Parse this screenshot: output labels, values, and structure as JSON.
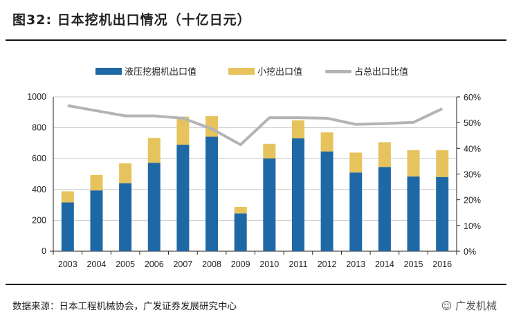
{
  "title": "图32:  日本挖机出口情况（十亿日元）",
  "source": "数据来源：日本工程机械协会，广发证券发展研究中心",
  "watermark": "广发机械",
  "chart_data": {
    "type": "bar",
    "stacked": true,
    "title": "图32:  日本挖机出口情况（十亿日元）",
    "categories": [
      "2003",
      "2004",
      "2005",
      "2006",
      "2007",
      "2008",
      "2009",
      "2010",
      "2011",
      "2012",
      "2013",
      "2014",
      "2015",
      "2016"
    ],
    "series": [
      {
        "name": "液压挖掘机出口值",
        "type": "bar",
        "axis": "left",
        "color": "#1f68a6",
        "values": [
          316,
          394,
          440,
          573,
          690,
          742,
          245,
          601,
          731,
          646,
          510,
          546,
          484,
          481
        ]
      },
      {
        "name": "小挖出口值",
        "type": "bar",
        "axis": "left",
        "color": "#e6c35c",
        "values": [
          72,
          100,
          129,
          161,
          182,
          134,
          42,
          95,
          117,
          124,
          129,
          160,
          170,
          173
        ]
      },
      {
        "name": "占总出口比值",
        "type": "line",
        "axis": "right",
        "color": "#b4b4b4",
        "values": [
          56.6,
          54.6,
          52.6,
          52.6,
          51.7,
          47.6,
          41.4,
          51.9,
          51.9,
          51.7,
          49.3,
          49.6,
          50.1,
          55.4
        ]
      }
    ],
    "y_left": {
      "range": [
        0,
        1000
      ],
      "ticks": [
        "0",
        "200",
        "400",
        "600",
        "800",
        "1000"
      ]
    },
    "y_right": {
      "range": [
        0,
        60
      ],
      "ticks": [
        "0%",
        "10%",
        "20%",
        "30%",
        "40%",
        "50%",
        "60%"
      ]
    },
    "grid": true,
    "legend": "top-center"
  }
}
